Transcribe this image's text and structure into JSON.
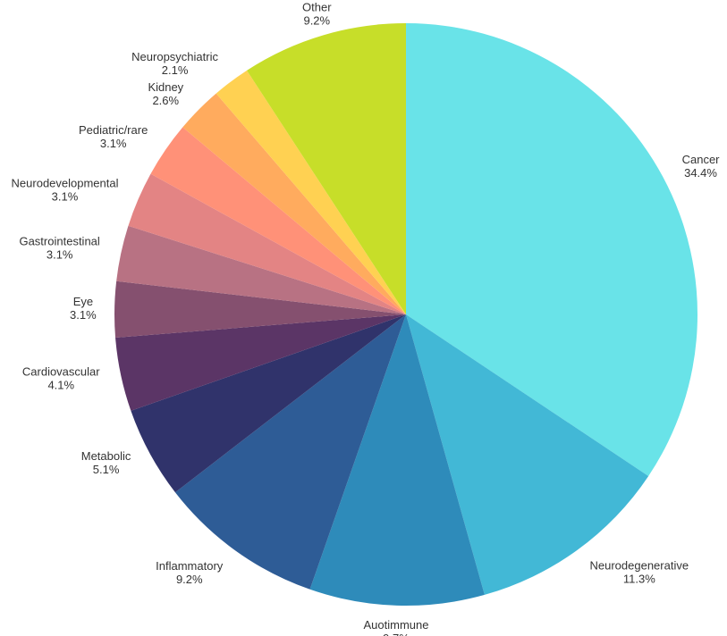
{
  "chart_data": {
    "type": "pie",
    "title": "",
    "start_angle_deg": 0,
    "direction": "clockwise",
    "slices": [
      {
        "name": "Cancer",
        "value": 34.4,
        "label": "34.4%",
        "color": "#69E3E8"
      },
      {
        "name": "Neurodegenerative",
        "value": 11.3,
        "label": "11.3%",
        "color": "#42B8D6"
      },
      {
        "name": "Auotimmune",
        "value": 9.7,
        "label": "9.7%",
        "color": "#2E8BBA"
      },
      {
        "name": "Inflammatory",
        "value": 9.2,
        "label": "9.2%",
        "color": "#2E5C96"
      },
      {
        "name": "Metabolic",
        "value": 5.1,
        "label": "5.1%",
        "color": "#30336B"
      },
      {
        "name": "Cardiovascular",
        "value": 4.1,
        "label": "4.1%",
        "color": "#5B3566"
      },
      {
        "name": "Eye",
        "value": 3.1,
        "label": "3.1%",
        "color": "#85506F"
      },
      {
        "name": "Gastrointestinal",
        "value": 3.1,
        "label": "3.1%",
        "color": "#B87283"
      },
      {
        "name": "Neurodevelopmental",
        "value": 3.1,
        "label": "3.1%",
        "color": "#E38484"
      },
      {
        "name": "Pediatric/rare",
        "value": 3.1,
        "label": "3.1%",
        "color": "#FF9178"
      },
      {
        "name": "Kidney",
        "value": 2.6,
        "label": "2.6%",
        "color": "#FFAB5E"
      },
      {
        "name": "Neuropsychiatric",
        "value": 2.1,
        "label": "2.1%",
        "color": "#FFD152"
      },
      {
        "name": "Other",
        "value": 9.2,
        "label": "9.2%",
        "color": "#C7DE29"
      }
    ]
  }
}
